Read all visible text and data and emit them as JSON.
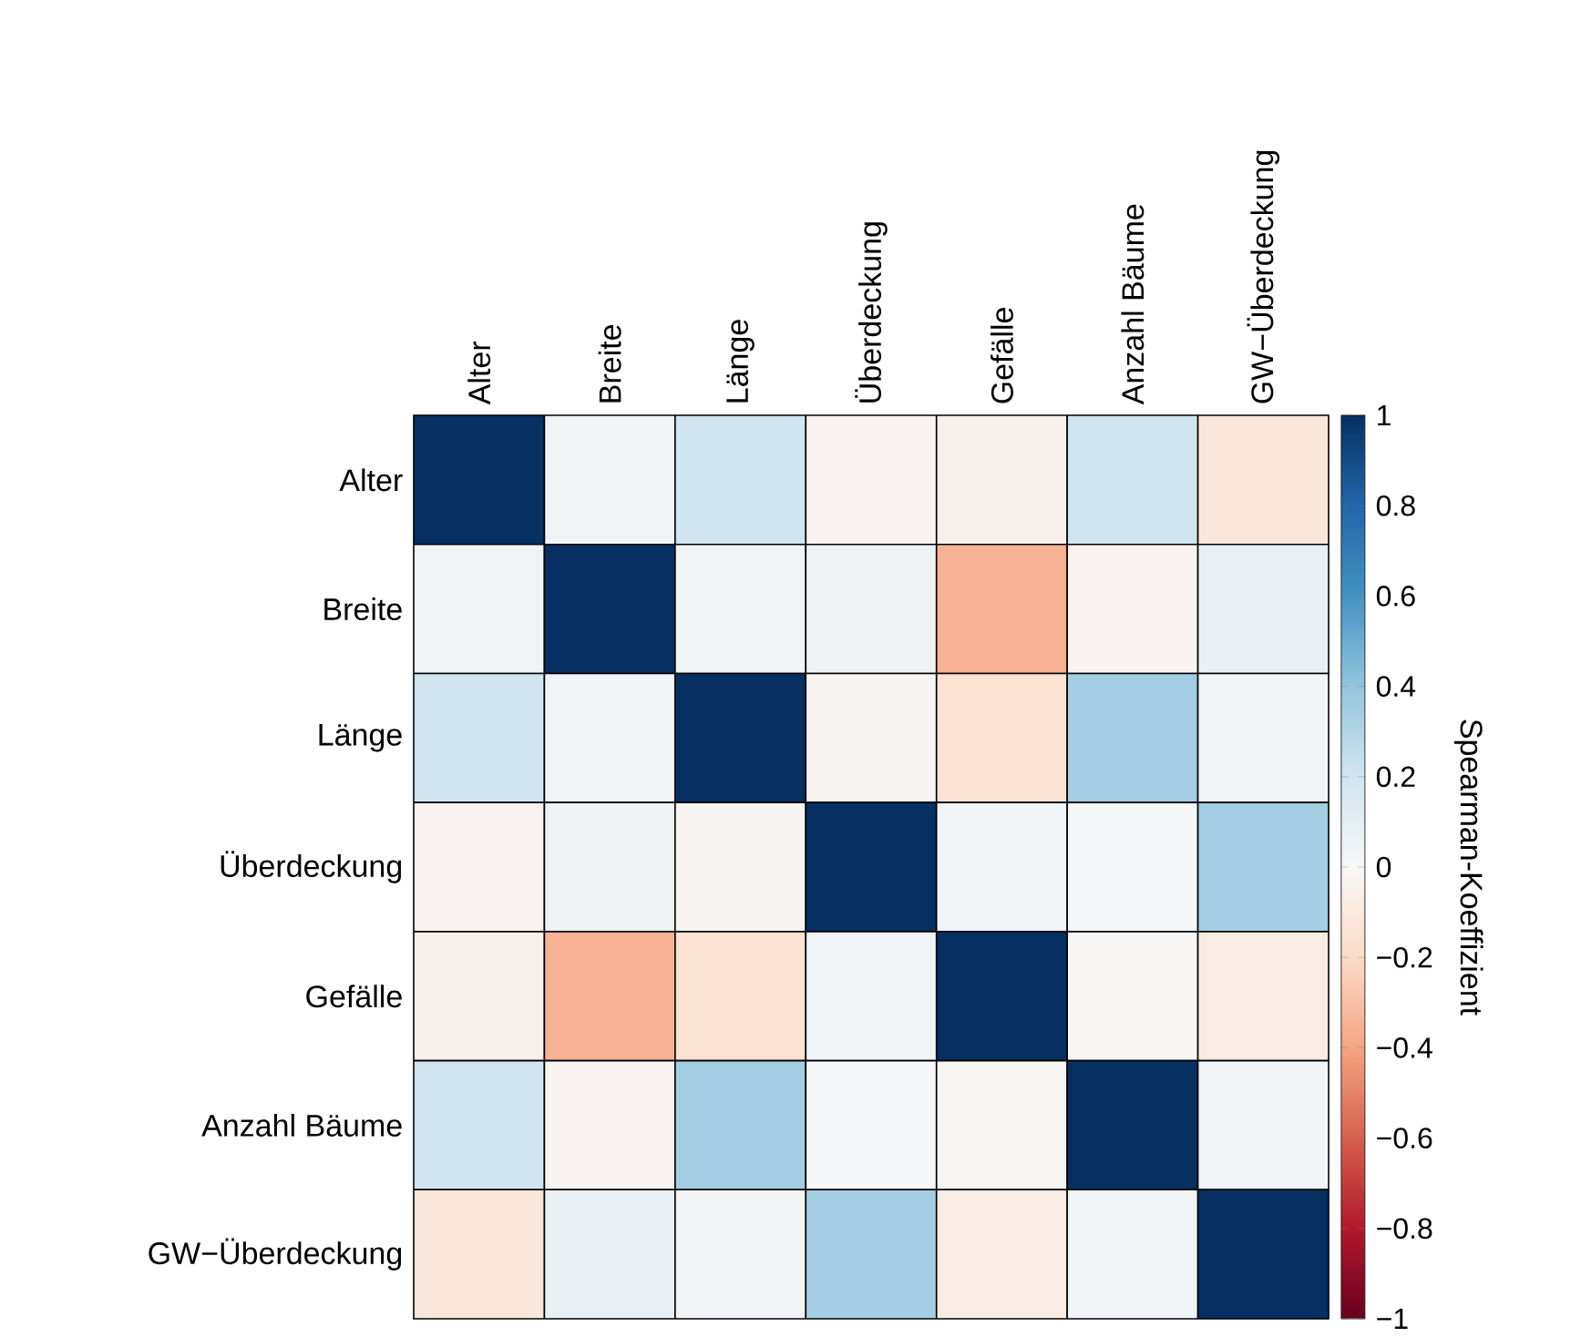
{
  "chart_data": {
    "type": "heatmap",
    "clabel": "Spearman-Koeffizient",
    "categories": [
      "Alter",
      "Breite",
      "Länge",
      "Überdeckung",
      "Gefälle",
      "Anzahl Bäume",
      "GW−Überdeckung"
    ],
    "y_categories": [
      "Alter",
      "Breite",
      "Länge",
      "Überdeckung",
      "Gefälle",
      "Anzahl Bäume",
      "GW−Überdeckung"
    ],
    "cells": [
      [
        1,
        0.03,
        0.2,
        -0.03,
        -0.05,
        0.2,
        -0.12
      ],
      [
        0.03,
        1,
        0.03,
        0.05,
        -0.35,
        -0.03,
        0.08
      ],
      [
        0.2,
        0.03,
        1,
        -0.02,
        -0.15,
        0.35,
        0.03
      ],
      [
        -0.03,
        0.05,
        -0.02,
        1,
        0.03,
        0.01,
        0.35
      ],
      [
        -0.05,
        -0.35,
        -0.15,
        0.03,
        1,
        -0.01,
        -0.08
      ],
      [
        0.2,
        -0.03,
        0.35,
        0.01,
        -0.01,
        1,
        0.03
      ],
      [
        -0.12,
        0.08,
        0.03,
        0.35,
        -0.08,
        0.03,
        1
      ]
    ],
    "clim": [
      -1,
      1
    ],
    "cticks": [
      {
        "value": -1,
        "label": "−1"
      },
      {
        "value": -0.8,
        "label": "−0.8"
      },
      {
        "value": -0.6,
        "label": "−0.6"
      },
      {
        "value": -0.4,
        "label": "−0.4"
      },
      {
        "value": -0.2,
        "label": "−0.2"
      },
      0,
      0.2,
      0.4,
      0.6,
      0.8,
      1
    ]
  }
}
